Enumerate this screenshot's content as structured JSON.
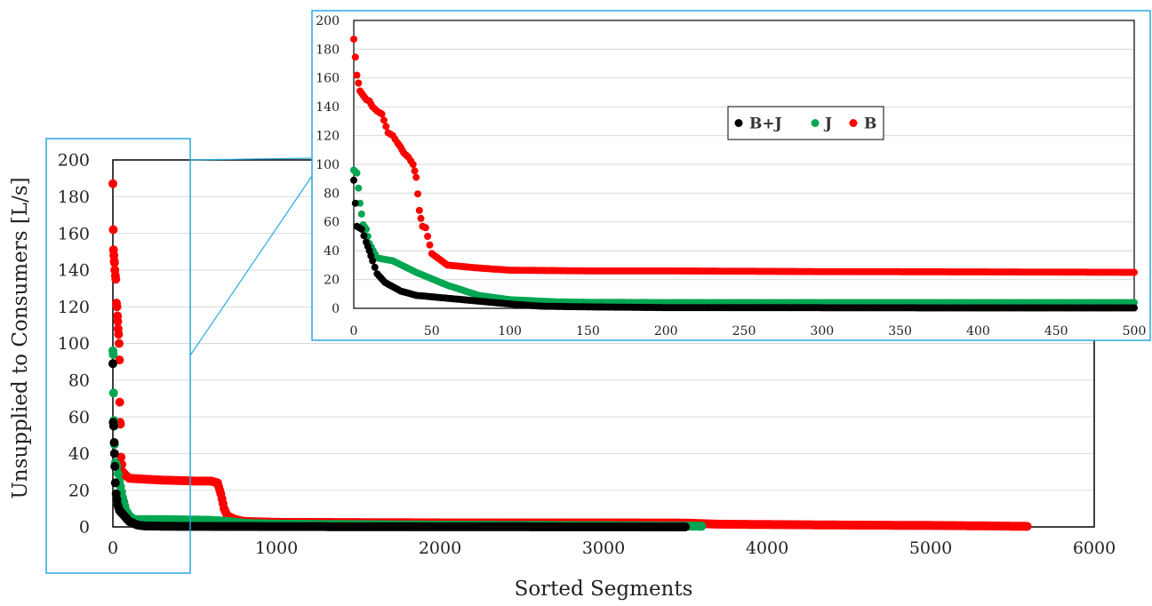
{
  "chart_data": [
    {
      "type": "scatter",
      "title": "",
      "xlabel": "Sorted Segments",
      "ylabel": "Unsupplied to Consumers [L/s]",
      "xlim": [
        0,
        6000
      ],
      "ylim": [
        0,
        200
      ],
      "xticks": [
        0,
        1000,
        2000,
        3000,
        4000,
        5000,
        6000
      ],
      "yticks": [
        0,
        20,
        40,
        60,
        80,
        100,
        120,
        140,
        160,
        180,
        200
      ],
      "grid": true,
      "series": [
        {
          "name": "B+J",
          "color": "#000000",
          "points": [
            [
              0,
              89
            ],
            [
              2,
              57
            ],
            [
              5,
              55
            ],
            [
              8,
              46
            ],
            [
              10,
              40
            ],
            [
              12,
              33
            ],
            [
              15,
              24
            ],
            [
              20,
              18
            ],
            [
              25,
              15
            ],
            [
              30,
              12
            ],
            [
              40,
              9
            ],
            [
              60,
              7
            ],
            [
              80,
              5
            ],
            [
              100,
              3
            ],
            [
              150,
              1
            ],
            [
              200,
              0.5
            ],
            [
              400,
              0.3
            ],
            [
              1000,
              0.2
            ],
            [
              2000,
              0.1
            ],
            [
              3000,
              0.05
            ],
            [
              3500,
              0
            ]
          ]
        },
        {
          "name": "J",
          "color": "#00a651",
          "points": [
            [
              0,
              96
            ],
            [
              2,
              94
            ],
            [
              4,
              73
            ],
            [
              6,
              58
            ],
            [
              8,
              55
            ],
            [
              10,
              45
            ],
            [
              15,
              35
            ],
            [
              25,
              33
            ],
            [
              40,
              25
            ],
            [
              60,
              16
            ],
            [
              80,
              9
            ],
            [
              100,
              6
            ],
            [
              130,
              4
            ],
            [
              300,
              4
            ],
            [
              600,
              3.6
            ],
            [
              700,
              3
            ],
            [
              800,
              2
            ],
            [
              1000,
              1.5
            ],
            [
              2000,
              1
            ],
            [
              3000,
              0.7
            ],
            [
              3600,
              0.4
            ]
          ]
        },
        {
          "name": "B",
          "color": "#ff0000",
          "points": [
            [
              0,
              187
            ],
            [
              2,
              162
            ],
            [
              4,
              151
            ],
            [
              6,
              148
            ],
            [
              8,
              145
            ],
            [
              10,
              144
            ],
            [
              12,
              140
            ],
            [
              15,
              137
            ],
            [
              18,
              135
            ],
            [
              22,
              122
            ],
            [
              25,
              120
            ],
            [
              28,
              115
            ],
            [
              30,
              112
            ],
            [
              32,
              108
            ],
            [
              35,
              105
            ],
            [
              38,
              100
            ],
            [
              40,
              91
            ],
            [
              42,
              68
            ],
            [
              44,
              57
            ],
            [
              46,
              56
            ],
            [
              50,
              38
            ],
            [
              55,
              34
            ],
            [
              60,
              30
            ],
            [
              80,
              28
            ],
            [
              100,
              26.5
            ],
            [
              200,
              26
            ],
            [
              300,
              25.5
            ],
            [
              400,
              25.3
            ],
            [
              500,
              25
            ],
            [
              600,
              25
            ],
            [
              640,
              24
            ],
            [
              660,
              18
            ],
            [
              680,
              10
            ],
            [
              700,
              6
            ],
            [
              750,
              4
            ],
            [
              800,
              3
            ],
            [
              1000,
              2.5
            ],
            [
              2000,
              2.2
            ],
            [
              3000,
              2.2
            ],
            [
              3500,
              2.1
            ],
            [
              3700,
              1.5
            ],
            [
              4000,
              1.3
            ],
            [
              4500,
              1
            ],
            [
              5000,
              0.8
            ],
            [
              5300,
              0.6
            ],
            [
              5590,
              0.3
            ]
          ]
        }
      ]
    },
    {
      "type": "scatter",
      "title": "",
      "xlabel": "",
      "ylabel": "",
      "xlim": [
        0,
        500
      ],
      "ylim": [
        0,
        200
      ],
      "xticks": [
        0,
        50,
        100,
        150,
        200,
        250,
        300,
        350,
        400,
        450,
        500
      ],
      "yticks": [
        0,
        20,
        40,
        60,
        80,
        100,
        120,
        140,
        160,
        180,
        200
      ],
      "grid": true,
      "legend": {
        "position": "upper-center",
        "entries": [
          "B+J",
          "J",
          "B"
        ]
      },
      "series": [
        {
          "name": "B+J",
          "color": "#000000",
          "points": [
            [
              0,
              89
            ],
            [
              2,
              57
            ],
            [
              5,
              55
            ],
            [
              8,
              46
            ],
            [
              10,
              40
            ],
            [
              12,
              33
            ],
            [
              15,
              24
            ],
            [
              20,
              18
            ],
            [
              25,
              15
            ],
            [
              30,
              12
            ],
            [
              40,
              9
            ],
            [
              60,
              7
            ],
            [
              80,
              5
            ],
            [
              100,
              3
            ],
            [
              120,
              1.5
            ],
            [
              150,
              1
            ],
            [
              200,
              0.5
            ],
            [
              300,
              0.4
            ],
            [
              400,
              0.3
            ],
            [
              500,
              0.3
            ]
          ]
        },
        {
          "name": "J",
          "color": "#00a651",
          "points": [
            [
              0,
              96
            ],
            [
              2,
              94
            ],
            [
              4,
              73
            ],
            [
              6,
              58
            ],
            [
              8,
              55
            ],
            [
              10,
              45
            ],
            [
              15,
              35
            ],
            [
              25,
              33
            ],
            [
              40,
              25
            ],
            [
              60,
              16
            ],
            [
              80,
              9
            ],
            [
              100,
              6
            ],
            [
              130,
              4.5
            ],
            [
              150,
              4.2
            ],
            [
              200,
              4
            ],
            [
              300,
              4
            ],
            [
              400,
              4
            ],
            [
              500,
              4
            ]
          ]
        },
        {
          "name": "B",
          "color": "#ff0000",
          "points": [
            [
              0,
              187
            ],
            [
              2,
              162
            ],
            [
              4,
              151
            ],
            [
              6,
              148
            ],
            [
              8,
              145
            ],
            [
              10,
              144
            ],
            [
              12,
              140
            ],
            [
              15,
              137
            ],
            [
              18,
              135
            ],
            [
              22,
              122
            ],
            [
              25,
              120
            ],
            [
              28,
              115
            ],
            [
              30,
              112
            ],
            [
              32,
              108
            ],
            [
              35,
              105
            ],
            [
              38,
              100
            ],
            [
              40,
              91
            ],
            [
              42,
              68
            ],
            [
              44,
              57
            ],
            [
              46,
              56
            ],
            [
              50,
              38
            ],
            [
              55,
              34
            ],
            [
              60,
              30
            ],
            [
              80,
              28
            ],
            [
              100,
              26.5
            ],
            [
              150,
              26
            ],
            [
              200,
              26
            ],
            [
              300,
              25.5
            ],
            [
              400,
              25.3
            ],
            [
              500,
              25
            ]
          ]
        }
      ]
    }
  ]
}
